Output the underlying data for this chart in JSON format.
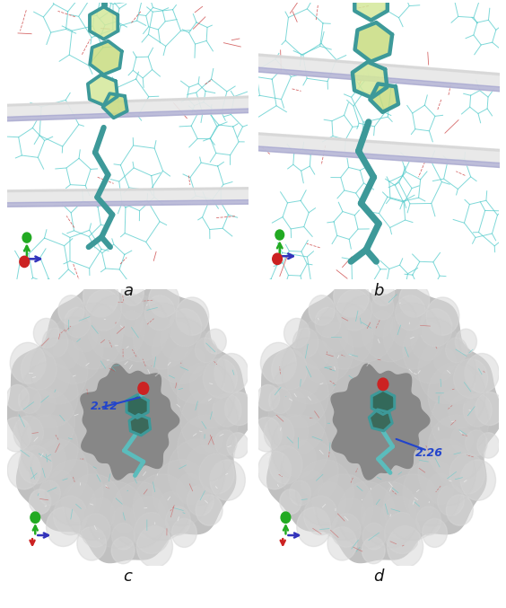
{
  "figure_width": 5.64,
  "figure_height": 6.77,
  "dpi": 100,
  "background_color": "#ffffff",
  "panel_labels": [
    "a",
    "b",
    "c",
    "d"
  ],
  "panel_label_fontsize": 13,
  "teal": "#3d9999",
  "teal_light": "#5bbcbc",
  "teal_dark": "#2a7070",
  "red": "#cc2222",
  "green": "#22aa22",
  "blue_arrow": "#3333bb",
  "ygreen": "#d4e89a",
  "ygreen2": "#c8dc80",
  "ribbon_white": "#e8e8e8",
  "ribbon_blue": "#9999cc",
  "bg_top": "#ffffff",
  "bg_bottom": "#878787",
  "surface_light": "#c0c0c0",
  "surface_mid": "#aaaaaa",
  "surface_dark": "#909090",
  "wireframe_cyan": "#55cccc",
  "wireframe_red": "#cc4444",
  "ann_blue": "#2244cc",
  "ann_c": "2.12",
  "ann_d": "2.26"
}
